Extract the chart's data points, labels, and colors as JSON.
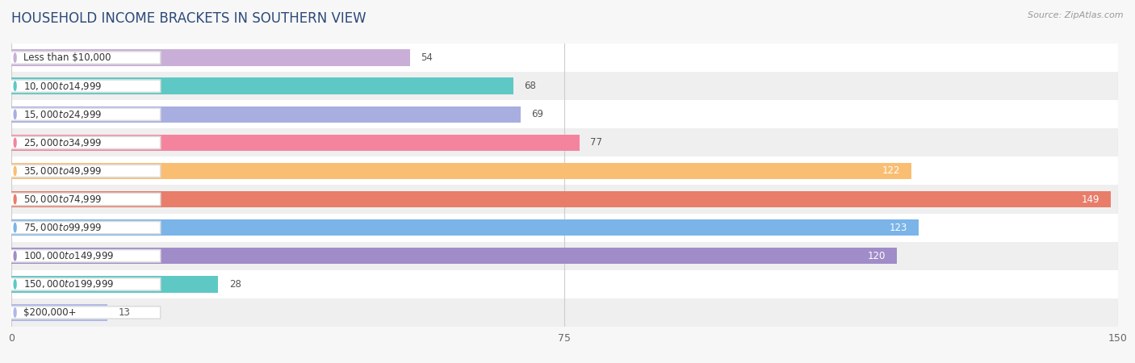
{
  "title": "HOUSEHOLD INCOME BRACKETS IN SOUTHERN VIEW",
  "source": "Source: ZipAtlas.com",
  "categories": [
    "Less than $10,000",
    "$10,000 to $14,999",
    "$15,000 to $24,999",
    "$25,000 to $34,999",
    "$35,000 to $49,999",
    "$50,000 to $74,999",
    "$75,000 to $99,999",
    "$100,000 to $149,999",
    "$150,000 to $199,999",
    "$200,000+"
  ],
  "values": [
    54,
    68,
    69,
    77,
    122,
    149,
    123,
    120,
    28,
    13
  ],
  "bar_colors": [
    "#c9afd8",
    "#5ec8c4",
    "#a8aee0",
    "#f4849e",
    "#f9be72",
    "#e87d6a",
    "#7ab4e8",
    "#a08cc8",
    "#5ec8c4",
    "#b0b8e8"
  ],
  "label_pill_colors": [
    "#c9afd8",
    "#5ec8c4",
    "#a8aee0",
    "#f4849e",
    "#f9be72",
    "#e87d6a",
    "#7ab4e8",
    "#a08cc8",
    "#5ec8c4",
    "#b0b8e8"
  ],
  "xlim": [
    0,
    150
  ],
  "xticks": [
    0,
    75,
    150
  ],
  "bar_height": 0.58,
  "background_color": "#f7f7f7",
  "title_fontsize": 12,
  "label_fontsize": 8.5,
  "value_fontsize": 8.5,
  "title_color": "#2d4a7a",
  "label_text_color": "#333333",
  "source_color": "#999999"
}
